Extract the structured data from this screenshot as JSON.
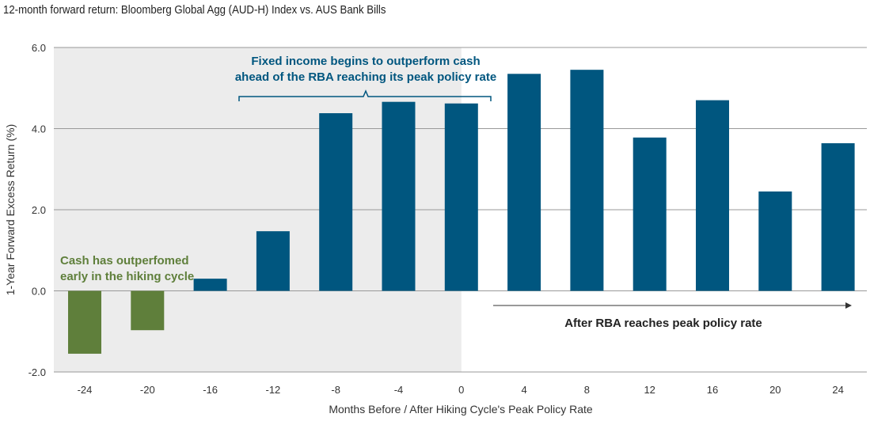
{
  "chart_data": {
    "type": "bar",
    "title": "12-month forward return: Bloomberg Global Agg (AUD-H) Index vs. AUS Bank Bills",
    "xlabel": "Months Before / After Hiking Cycle's Peak Policy Rate",
    "ylabel": "1-Year Forward Excess Return (%)",
    "ylim": [
      -2,
      6
    ],
    "yticks": [
      "-2.0",
      "0.0",
      "2.0",
      "4.0",
      "6.0"
    ],
    "categories": [
      "-24",
      "-20",
      "-16",
      "-12",
      "-8",
      "-4",
      "0",
      "4",
      "8",
      "12",
      "16",
      "20",
      "24"
    ],
    "values": [
      -1.55,
      -0.97,
      0.3,
      1.47,
      4.38,
      4.66,
      4.62,
      5.35,
      5.45,
      3.78,
      4.7,
      2.45,
      3.64
    ],
    "grid": "horizontal",
    "colors": {
      "positive": "#00567f",
      "negative": "#5f7f3b",
      "shade": "#ececec",
      "annotation": "#00567f",
      "annotation_green": "#5f7f3b"
    },
    "shaded_region": [
      "-24",
      "0"
    ],
    "annotations": {
      "fixed_income": [
        "Fixed income begins to outperform cash",
        "ahead of the RBA reaching its peak policy rate"
      ],
      "cash": [
        "Cash has outperfomed",
        "early in the hiking cycle"
      ],
      "after": "After RBA reaches peak policy rate"
    }
  }
}
